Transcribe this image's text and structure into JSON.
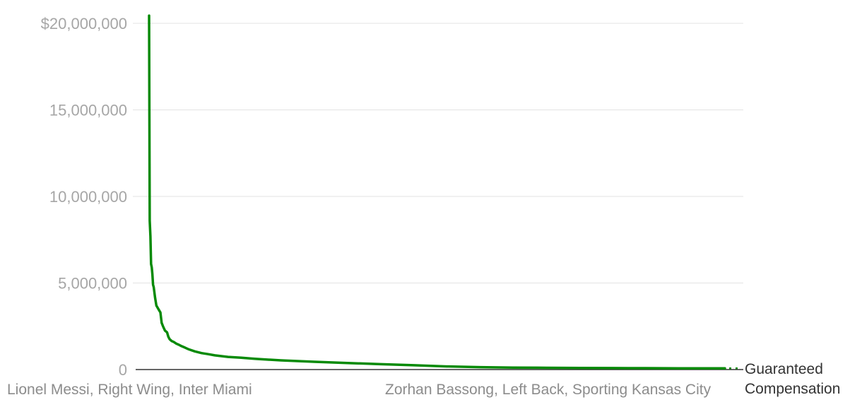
{
  "chart_data": {
    "type": "line",
    "title": "",
    "xlabel": "",
    "ylabel": "",
    "ylim": [
      0,
      20000000
    ],
    "y_ticks": [
      {
        "value": 0,
        "label": "0"
      },
      {
        "value": 5000000,
        "label": "5,000,000"
      },
      {
        "value": 10000000,
        "label": "10,000,000"
      },
      {
        "value": 15000000,
        "label": "15,000,000"
      },
      {
        "value": 20000000,
        "label": "$20,000,000"
      }
    ],
    "x_tick_labels": [
      {
        "rank": 1,
        "label": "Lionel Messi, Right Wing, Inter Miami"
      },
      {
        "rank": 869,
        "label": "Zorhan Bassong, Left Back, Sporting Kansas City"
      }
    ],
    "grid": true,
    "color": "#078a07",
    "series": [
      {
        "name": "Guaranteed Compensation",
        "x": [
          1,
          2,
          3,
          4,
          5,
          6,
          7,
          8,
          10,
          12,
          15,
          18,
          20,
          22,
          25,
          28,
          30,
          32,
          35,
          38,
          42,
          46,
          50,
          55,
          60,
          70,
          80,
          90,
          100,
          120,
          140,
          160,
          200,
          250,
          300,
          350,
          400,
          450,
          500,
          550,
          600,
          650,
          700,
          750,
          800,
          869
        ],
        "values": [
          20446667,
          8600000,
          7700000,
          6100000,
          5900000,
          5500000,
          4900000,
          4750000,
          4150000,
          3700000,
          3500000,
          3300000,
          2700000,
          2500000,
          2250000,
          2150000,
          1900000,
          1750000,
          1650000,
          1600000,
          1500000,
          1430000,
          1350000,
          1270000,
          1180000,
          1050000,
          950000,
          890000,
          820000,
          730000,
          680000,
          620000,
          530000,
          450000,
          380000,
          310000,
          250000,
          180000,
          140000,
          115000,
          100000,
          90000,
          85000,
          80000,
          75000,
          70000
        ]
      }
    ]
  }
}
